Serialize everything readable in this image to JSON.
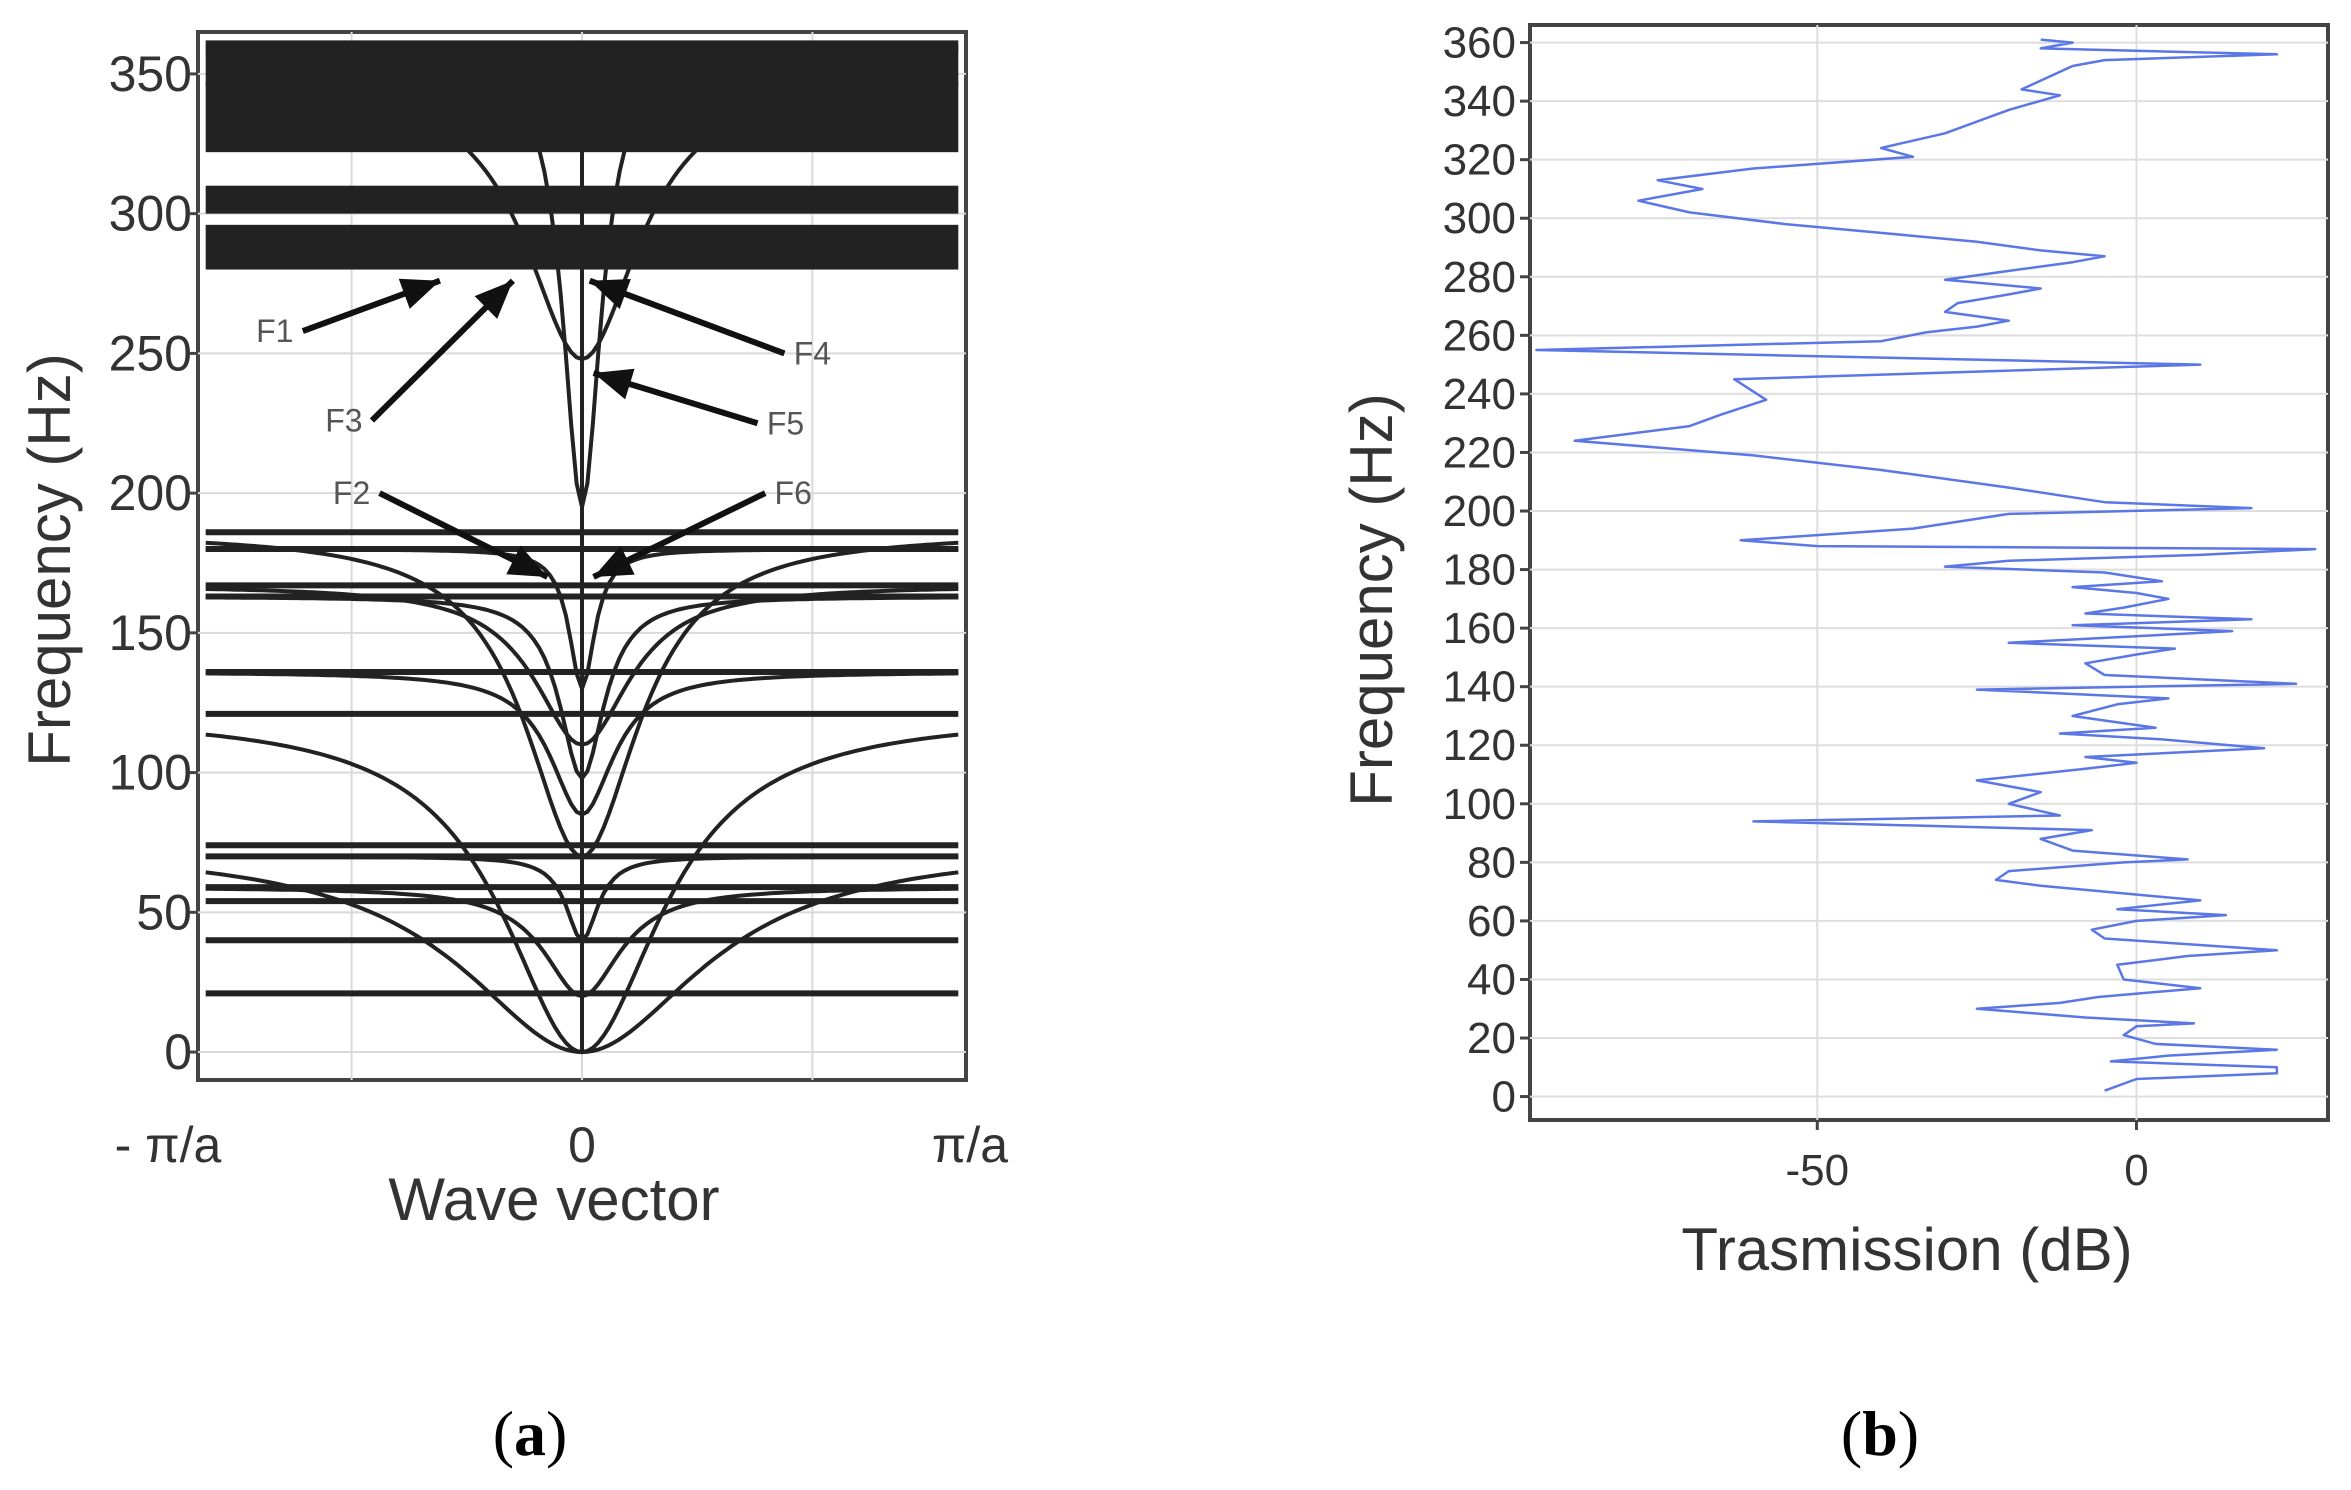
{
  "chart_data": [
    {
      "id": "a",
      "type": "line",
      "title": "",
      "panel_label": "a",
      "xlabel": "Wave vector",
      "ylabel": "Frequency (Hz)",
      "xlim": [
        -1,
        1
      ],
      "ylim": [
        -10,
        365
      ],
      "x_tick_labels": [
        "- π/a",
        "0",
        "π/a"
      ],
      "y_ticks": [
        0,
        50,
        100,
        150,
        200,
        250,
        300,
        350
      ],
      "grid": true,
      "line_color": "#222222",
      "flat_bands": [
        21,
        40,
        54,
        59,
        70,
        74,
        121,
        136,
        163,
        167,
        180,
        186
      ],
      "thick_bands": [
        [
          280,
          296
        ],
        [
          300,
          310
        ],
        [
          322,
          362
        ]
      ],
      "dispersive_bands": [
        {
          "f0": 0,
          "f1": 74,
          "width": 0.38
        },
        {
          "f0": 0,
          "f1": 121,
          "width": 0.25
        },
        {
          "f0": 20,
          "f1": 59,
          "width": 0.12
        },
        {
          "f0": 40,
          "f1": 70,
          "width": 0.05
        },
        {
          "f0": 70,
          "f1": 186,
          "width": 0.18
        },
        {
          "f0": 85,
          "f1": 136,
          "width": 0.1
        },
        {
          "f0": 98,
          "f1": 163,
          "width": 0.07
        },
        {
          "f0": 110,
          "f1": 167,
          "width": 0.15
        },
        {
          "f0": 130,
          "f1": 180,
          "width": 0.04
        },
        {
          "f0": 195,
          "f1": 360,
          "width": 0.06
        },
        {
          "f0": 248,
          "f1": 350,
          "width": 0.18
        }
      ],
      "annotations": [
        {
          "label": "F1",
          "text_x": -0.8,
          "text_y": 258,
          "tip_x": -0.37,
          "tip_y": 276
        },
        {
          "label": "F3",
          "text_x": -0.62,
          "text_y": 226,
          "tip_x": -0.18,
          "tip_y": 276
        },
        {
          "label": "F2",
          "text_x": -0.6,
          "text_y": 200,
          "tip_x": -0.09,
          "tip_y": 170
        },
        {
          "label": "F4",
          "text_x": 0.6,
          "text_y": 250,
          "tip_x": 0.02,
          "tip_y": 276
        },
        {
          "label": "F5",
          "text_x": 0.53,
          "text_y": 225,
          "tip_x": 0.03,
          "tip_y": 243
        },
        {
          "label": "F6",
          "text_x": 0.55,
          "text_y": 200,
          "tip_x": 0.03,
          "tip_y": 170
        }
      ]
    },
    {
      "id": "b",
      "type": "line",
      "title": "",
      "panel_label": "b",
      "xlabel": "Trasmission  (dB)",
      "ylabel": "Frequency (Hz)",
      "xlim": [
        -95,
        30
      ],
      "ylim": [
        -8,
        366
      ],
      "x_ticks": [
        -50,
        0
      ],
      "x_tick_labels": [
        "-50",
        "0"
      ],
      "y_ticks": [
        0,
        20,
        40,
        60,
        80,
        100,
        120,
        140,
        160,
        180,
        200,
        220,
        240,
        260,
        280,
        300,
        320,
        340,
        360
      ],
      "grid": true,
      "line_color": "#5b77e6",
      "series": [
        {
          "name": "Transmission",
          "points": [
            [
              -5,
              2
            ],
            [
              0,
              6
            ],
            [
              22,
              8
            ],
            [
              22,
              10
            ],
            [
              -4,
              12
            ],
            [
              5,
              14
            ],
            [
              22,
              16
            ],
            [
              3,
              18
            ],
            [
              -2,
              21
            ],
            [
              0,
              24
            ],
            [
              9,
              25
            ],
            [
              -8,
              27
            ],
            [
              -25,
              30
            ],
            [
              -12,
              32
            ],
            [
              -6,
              34
            ],
            [
              10,
              37
            ],
            [
              -2,
              40
            ],
            [
              -3,
              45
            ],
            [
              8,
              48
            ],
            [
              22,
              50
            ],
            [
              -5,
              54
            ],
            [
              -7,
              57
            ],
            [
              0,
              60
            ],
            [
              14,
              62
            ],
            [
              -3,
              64
            ],
            [
              10,
              67
            ],
            [
              -5,
              70
            ],
            [
              -15,
              72
            ],
            [
              -22,
              74
            ],
            [
              -20,
              77
            ],
            [
              -2,
              80
            ],
            [
              8,
              81
            ],
            [
              -10,
              84
            ],
            [
              -15,
              88
            ],
            [
              -7,
              91
            ],
            [
              -60,
              94
            ],
            [
              -12,
              96
            ],
            [
              -20,
              100
            ],
            [
              -15,
              104
            ],
            [
              -25,
              108
            ],
            [
              -8,
              112
            ],
            [
              0,
              114
            ],
            [
              -8,
              116
            ],
            [
              20,
              119
            ],
            [
              4,
              122
            ],
            [
              -12,
              124
            ],
            [
              3,
              126
            ],
            [
              -10,
              130
            ],
            [
              -3,
              134
            ],
            [
              5,
              136
            ],
            [
              -25,
              139
            ],
            [
              25,
              141
            ],
            [
              -5,
              144
            ],
            [
              -8,
              148
            ],
            [
              0,
              151
            ],
            [
              6,
              153
            ],
            [
              -20,
              155
            ],
            [
              -2,
              157
            ],
            [
              15,
              159
            ],
            [
              -10,
              161
            ],
            [
              18,
              163
            ],
            [
              -8,
              165
            ],
            [
              -2,
              167
            ],
            [
              5,
              170
            ],
            [
              0,
              172
            ],
            [
              -10,
              174
            ],
            [
              4,
              176
            ],
            [
              -5,
              179
            ],
            [
              -30,
              181
            ],
            [
              -20,
              183
            ],
            [
              10,
              185
            ],
            [
              28,
              187
            ],
            [
              -50,
              188
            ],
            [
              -62,
              190
            ],
            [
              -35,
              194
            ],
            [
              -20,
              199
            ],
            [
              18,
              201
            ],
            [
              -5,
              203
            ],
            [
              -20,
              208
            ],
            [
              -40,
              214
            ],
            [
              -60,
              219
            ],
            [
              -88,
              224
            ],
            [
              -70,
              229
            ],
            [
              -65,
              233
            ],
            [
              -58,
              238
            ],
            [
              -63,
              245
            ],
            [
              10,
              250
            ],
            [
              -94,
              255
            ],
            [
              -40,
              258
            ],
            [
              -33,
              261
            ],
            [
              -25,
              263
            ],
            [
              -20,
              265
            ],
            [
              -30,
              268
            ],
            [
              -28,
              271
            ],
            [
              -20,
              274
            ],
            [
              -15,
              276
            ],
            [
              -30,
              279
            ],
            [
              -20,
              282
            ],
            [
              -10,
              285
            ],
            [
              -5,
              287
            ],
            [
              -15,
              289
            ],
            [
              -25,
              292
            ],
            [
              -40,
              295
            ],
            [
              -55,
              298
            ],
            [
              -70,
              302
            ],
            [
              -78,
              306
            ],
            [
              -68,
              310
            ],
            [
              -75,
              313
            ],
            [
              -60,
              317
            ],
            [
              -35,
              321
            ],
            [
              -40,
              324
            ],
            [
              -30,
              329
            ],
            [
              -20,
              337
            ],
            [
              -12,
              342
            ],
            [
              -18,
              344
            ],
            [
              -15,
              347
            ],
            [
              -10,
              352
            ],
            [
              -5,
              354
            ],
            [
              22,
              356
            ],
            [
              -15,
              358
            ],
            [
              -10,
              360
            ],
            [
              -15,
              361
            ]
          ]
        }
      ]
    }
  ]
}
